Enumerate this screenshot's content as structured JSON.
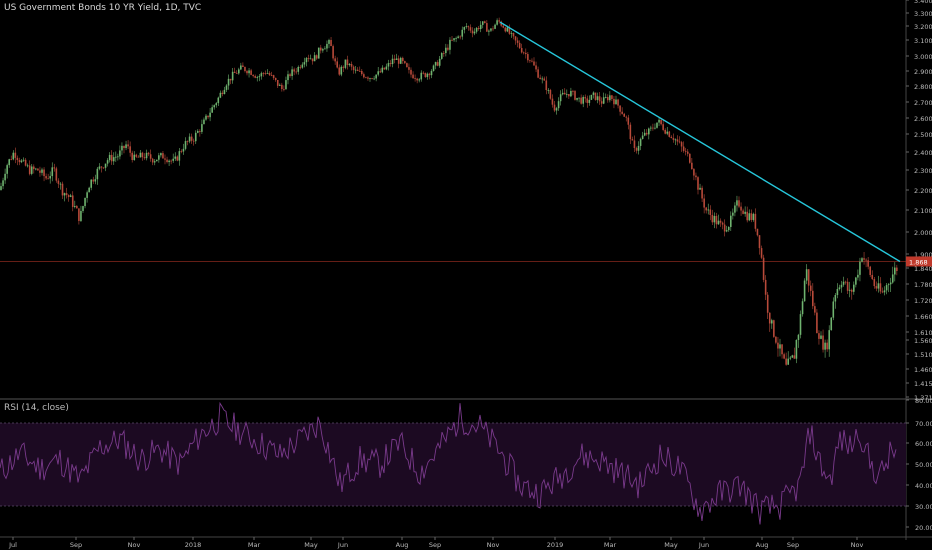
{
  "title": "US Government Bonds 10 YR Yield, 1D, TVC",
  "rsi_title": "RSI (14, close)",
  "colors": {
    "background": "#000000",
    "up": "#6fb36f",
    "down": "#b84a3a",
    "trendline": "#26c6da",
    "rsi_line": "#7a3a8c",
    "rsi_band": "#1c0a22",
    "price_line": "#c0392b"
  },
  "chart_data": [
    {
      "type": "candlestick",
      "title": "US Government Bonds 10 YR Yield, 1D, TVC",
      "x_ticks": [
        "Jul",
        "Sep",
        "Nov",
        "2018",
        "Mar",
        "May",
        "Jun",
        "Aug",
        "Sep",
        "Nov",
        "2019",
        "Mar",
        "May",
        "Jun",
        "Aug",
        "Sep",
        "Nov"
      ],
      "y_ticks": [
        "3.400",
        "3.300",
        "3.200",
        "3.100",
        "3.000",
        "2.900",
        "2.800",
        "2.700",
        "2.600",
        "2.500",
        "2.400",
        "2.300",
        "2.200",
        "2.100",
        "2.000",
        "1.900",
        "1.840",
        "1.780",
        "1.720",
        "1.660",
        "1.610",
        "1.560",
        "1.510",
        "1.460",
        "1.415",
        "1.371"
      ],
      "price_label": "1.868",
      "close_path": [
        [
          0,
          2.2
        ],
        [
          6,
          2.32
        ],
        [
          14,
          2.4
        ],
        [
          22,
          2.34
        ],
        [
          30,
          2.3
        ],
        [
          38,
          2.3
        ],
        [
          46,
          2.26
        ],
        [
          54,
          2.3
        ],
        [
          62,
          2.2
        ],
        [
          70,
          2.16
        ],
        [
          80,
          2.06
        ],
        [
          88,
          2.22
        ],
        [
          98,
          2.3
        ],
        [
          108,
          2.36
        ],
        [
          118,
          2.38
        ],
        [
          126,
          2.44
        ],
        [
          134,
          2.36
        ],
        [
          144,
          2.38
        ],
        [
          154,
          2.36
        ],
        [
          164,
          2.38
        ],
        [
          174,
          2.34
        ],
        [
          184,
          2.44
        ],
        [
          194,
          2.48
        ],
        [
          202,
          2.55
        ],
        [
          210,
          2.64
        ],
        [
          218,
          2.72
        ],
        [
          226,
          2.82
        ],
        [
          234,
          2.88
        ],
        [
          242,
          2.92
        ],
        [
          250,
          2.9
        ],
        [
          258,
          2.86
        ],
        [
          266,
          2.9
        ],
        [
          274,
          2.84
        ],
        [
          282,
          2.78
        ],
        [
          290,
          2.88
        ],
        [
          298,
          2.92
        ],
        [
          306,
          3.0
        ],
        [
          314,
          2.98
        ],
        [
          322,
          3.06
        ],
        [
          330,
          3.08
        ],
        [
          338,
          2.88
        ],
        [
          346,
          2.96
        ],
        [
          354,
          2.9
        ],
        [
          362,
          2.88
        ],
        [
          370,
          2.86
        ],
        [
          378,
          2.88
        ],
        [
          386,
          2.92
        ],
        [
          394,
          2.98
        ],
        [
          402,
          2.96
        ],
        [
          410,
          2.88
        ],
        [
          418,
          2.86
        ],
        [
          426,
          2.88
        ],
        [
          434,
          2.92
        ],
        [
          442,
          3.0
        ],
        [
          450,
          3.08
        ],
        [
          458,
          3.12
        ],
        [
          466,
          3.2
        ],
        [
          474,
          3.16
        ],
        [
          482,
          3.22
        ],
        [
          490,
          3.16
        ],
        [
          498,
          3.24
        ],
        [
          506,
          3.18
        ],
        [
          514,
          3.1
        ],
        [
          522,
          3.04
        ],
        [
          530,
          2.98
        ],
        [
          538,
          2.88
        ],
        [
          546,
          2.8
        ],
        [
          554,
          2.66
        ],
        [
          562,
          2.74
        ],
        [
          570,
          2.76
        ],
        [
          578,
          2.72
        ],
        [
          586,
          2.7
        ],
        [
          594,
          2.74
        ],
        [
          602,
          2.7
        ],
        [
          610,
          2.74
        ],
        [
          618,
          2.68
        ],
        [
          626,
          2.6
        ],
        [
          634,
          2.4
        ],
        [
          642,
          2.48
        ],
        [
          650,
          2.52
        ],
        [
          658,
          2.58
        ],
        [
          666,
          2.52
        ],
        [
          674,
          2.48
        ],
        [
          682,
          2.42
        ],
        [
          690,
          2.36
        ],
        [
          698,
          2.22
        ],
        [
          706,
          2.1
        ],
        [
          714,
          2.06
        ],
        [
          722,
          2.02
        ],
        [
          730,
          2.04
        ],
        [
          738,
          2.14
        ],
        [
          746,
          2.08
        ],
        [
          754,
          2.06
        ],
        [
          760,
          1.94
        ],
        [
          766,
          1.72
        ],
        [
          772,
          1.62
        ],
        [
          778,
          1.54
        ],
        [
          786,
          1.46
        ],
        [
          794,
          1.5
        ],
        [
          800,
          1.64
        ],
        [
          806,
          1.84
        ],
        [
          812,
          1.72
        ],
        [
          818,
          1.6
        ],
        [
          826,
          1.52
        ],
        [
          834,
          1.74
        ],
        [
          842,
          1.8
        ],
        [
          850,
          1.74
        ],
        [
          856,
          1.8
        ],
        [
          862,
          1.9
        ],
        [
          868,
          1.84
        ],
        [
          874,
          1.78
        ],
        [
          882,
          1.74
        ],
        [
          890,
          1.8
        ],
        [
          896,
          1.84
        ]
      ],
      "trendline": [
        [
          500,
          3.23
        ],
        [
          900,
          1.868
        ]
      ],
      "rsi_close_path": [
        [
          0,
          46
        ],
        [
          20,
          55
        ],
        [
          40,
          48
        ],
        [
          60,
          52
        ],
        [
          80,
          42
        ],
        [
          100,
          58
        ],
        [
          120,
          62
        ],
        [
          140,
          52
        ],
        [
          160,
          57
        ],
        [
          180,
          50
        ],
        [
          200,
          64
        ],
        [
          220,
          72
        ],
        [
          240,
          66
        ],
        [
          260,
          60
        ],
        [
          280,
          54
        ],
        [
          300,
          62
        ],
        [
          320,
          70
        ],
        [
          340,
          40
        ],
        [
          360,
          52
        ],
        [
          380,
          50
        ],
        [
          400,
          60
        ],
        [
          420,
          46
        ],
        [
          440,
          58
        ],
        [
          460,
          72
        ],
        [
          480,
          68
        ],
        [
          500,
          56
        ],
        [
          520,
          40
        ],
        [
          540,
          36
        ],
        [
          560,
          44
        ],
        [
          580,
          54
        ],
        [
          600,
          52
        ],
        [
          620,
          46
        ],
        [
          640,
          40
        ],
        [
          660,
          54
        ],
        [
          680,
          48
        ],
        [
          700,
          28
        ],
        [
          720,
          36
        ],
        [
          740,
          40
        ],
        [
          760,
          28
        ],
        [
          780,
          30
        ],
        [
          800,
          40
        ],
        [
          810,
          66
        ],
        [
          820,
          50
        ],
        [
          830,
          42
        ],
        [
          840,
          62
        ],
        [
          850,
          58
        ],
        [
          860,
          66
        ],
        [
          870,
          50
        ],
        [
          880,
          44
        ],
        [
          890,
          54
        ],
        [
          896,
          56
        ]
      ]
    },
    {
      "type": "line",
      "title": "RSI (14, close)",
      "y_ticks": [
        "80.00",
        "70.00",
        "60.00",
        "50.00",
        "40.00",
        "30.00",
        "20.00"
      ],
      "bands": [
        30,
        70
      ],
      "ylim": [
        17,
        80
      ]
    }
  ]
}
